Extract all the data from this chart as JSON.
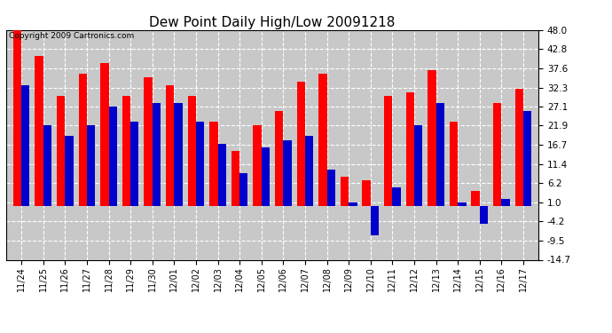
{
  "title": "Dew Point Daily High/Low 20091218",
  "copyright": "Copyright 2009 Cartronics.com",
  "dates": [
    "11/24",
    "11/25",
    "11/26",
    "11/27",
    "11/28",
    "11/29",
    "11/30",
    "12/01",
    "12/02",
    "12/03",
    "12/04",
    "12/05",
    "12/06",
    "12/07",
    "12/08",
    "12/09",
    "12/10",
    "12/11",
    "12/12",
    "12/13",
    "12/14",
    "12/15",
    "12/16",
    "12/17"
  ],
  "highs": [
    48.0,
    41.0,
    30.0,
    36.0,
    39.0,
    30.0,
    35.0,
    33.0,
    30.0,
    23.0,
    15.0,
    22.0,
    26.0,
    34.0,
    36.0,
    8.0,
    7.0,
    30.0,
    31.0,
    37.0,
    23.0,
    4.0,
    28.0,
    32.0
  ],
  "lows": [
    33.0,
    22.0,
    19.0,
    22.0,
    27.0,
    23.0,
    28.0,
    28.0,
    23.0,
    17.0,
    9.0,
    16.0,
    18.0,
    19.0,
    10.0,
    1.0,
    -8.0,
    5.0,
    22.0,
    28.0,
    1.0,
    -5.0,
    2.0,
    26.0
  ],
  "high_color": "#FF0000",
  "low_color": "#0000CC",
  "bg_color": "#FFFFFF",
  "plot_bg_color": "#C8C8C8",
  "grid_color": "#FFFFFF",
  "ylim_min": -14.7,
  "ylim_max": 48.0,
  "yticks": [
    -14.7,
    -9.5,
    -4.2,
    1.0,
    6.2,
    11.4,
    16.7,
    21.9,
    27.1,
    32.3,
    37.6,
    42.8,
    48.0
  ],
  "ytick_labels": [
    "-14.7",
    "-9.5",
    "-4.2",
    "1.0",
    "6.2",
    "11.4",
    "16.7",
    "21.9",
    "27.1",
    "32.3",
    "37.6",
    "42.8",
    "48.0"
  ],
  "bar_width": 0.38,
  "figwidth": 6.9,
  "figheight": 3.75,
  "dpi": 100
}
